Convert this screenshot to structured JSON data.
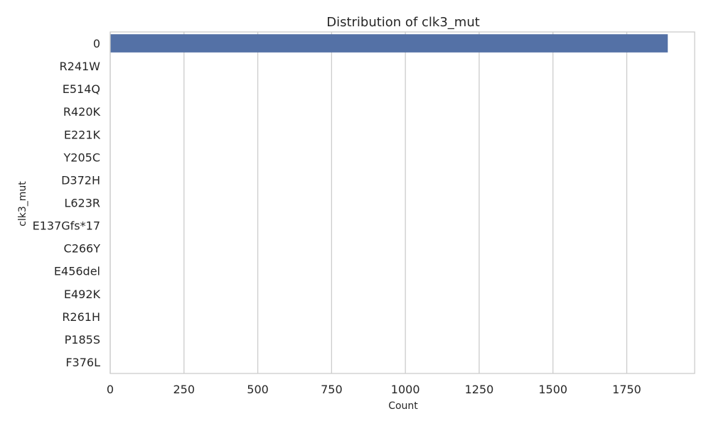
{
  "chart_data": {
    "type": "bar",
    "orientation": "horizontal",
    "title": "Distribution of clk3_mut",
    "xlabel": "Count",
    "ylabel": "clk3_mut",
    "categories": [
      "0",
      "R241W",
      "E514Q",
      "R420K",
      "E221K",
      "Y205C",
      "D372H",
      "L623R",
      "E137Gfs*17",
      "C266Y",
      "E456del",
      "E492K",
      "R261H",
      "P185S",
      "F376L"
    ],
    "values": [
      1889,
      1,
      1,
      1,
      1,
      1,
      1,
      1,
      1,
      1,
      1,
      1,
      1,
      1,
      1
    ],
    "xlim": [
      0,
      1980
    ],
    "xticks": [
      0,
      250,
      500,
      750,
      1000,
      1250,
      1500,
      1750
    ],
    "grid": true,
    "bar_color": "#5471a6"
  }
}
